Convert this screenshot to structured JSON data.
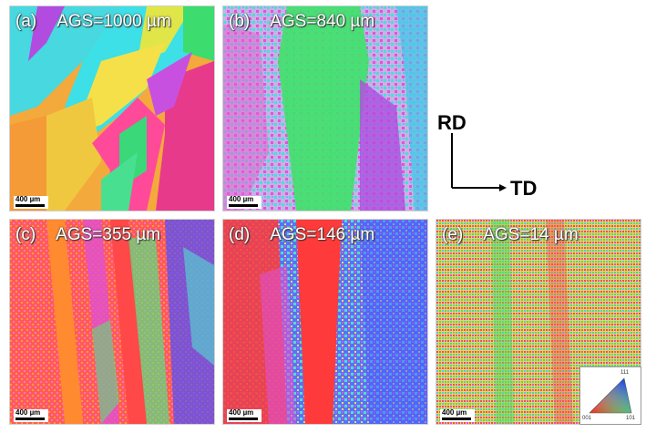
{
  "panels": [
    {
      "id": "a",
      "tag": "(a)",
      "title": "AGS=1000 µm",
      "scale": "400 µm"
    },
    {
      "id": "b",
      "tag": "(b)",
      "title": "AGS=840 µm",
      "scale": "400 µm"
    },
    {
      "id": "c",
      "tag": "(c)",
      "title": "AGS=355 µm",
      "scale": "400 µm"
    },
    {
      "id": "d",
      "tag": "(d)",
      "title": "AGS=146 µm",
      "scale": "400 µm"
    },
    {
      "id": "e",
      "tag": "(e)",
      "title": "AGS=14 µm",
      "scale": "400 µm"
    }
  ],
  "axes": {
    "rd": "RD",
    "td": "TD"
  },
  "legend": {
    "top": "111",
    "left": "001",
    "right": "101"
  },
  "colors": {
    "red": "#ff3a3a",
    "green": "#38e06a",
    "blue": "#3f4cff",
    "magenta": "#e04de0",
    "cyan": "#44e0e0",
    "orange": "#ff9a3a"
  }
}
